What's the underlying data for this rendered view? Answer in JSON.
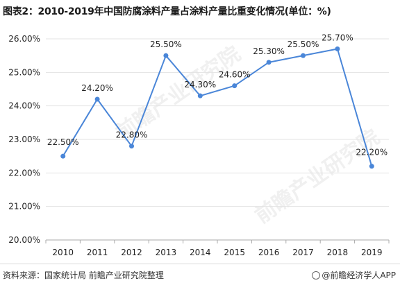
{
  "title": "图表2：2010-2019年中国防腐涂料产量占涂料产量比重变化情况(单位：%)",
  "source": "资料来源：国家统计局 前瞻产业研究院整理",
  "brand": "@前瞻经济学人APP",
  "watermark": "前瞻产业研究院",
  "colors": {
    "line": "#4a86d8",
    "grid": "#e3e3e3",
    "axis": "#aaaaaa"
  },
  "chart_data": {
    "type": "line",
    "categories": [
      "2010",
      "2011",
      "2012",
      "2013",
      "2014",
      "2015",
      "2016",
      "2017",
      "2018",
      "2019"
    ],
    "values": [
      22.5,
      24.2,
      22.8,
      25.5,
      24.3,
      24.6,
      25.3,
      25.5,
      25.7,
      22.2
    ],
    "data_labels": [
      "22.50%",
      "24.20%",
      "22.80%",
      "25.50%",
      "24.30%",
      "24.60%",
      "25.30%",
      "25.50%",
      "25.70%",
      "22.20%"
    ],
    "y_ticks": [
      20,
      21,
      22,
      23,
      24,
      25,
      26
    ],
    "y_tick_labels": [
      "20.00%",
      "21.00%",
      "22.00%",
      "23.00%",
      "24.00%",
      "25.00%",
      "26.00%"
    ],
    "ylim": [
      20,
      26
    ],
    "grid": true
  }
}
